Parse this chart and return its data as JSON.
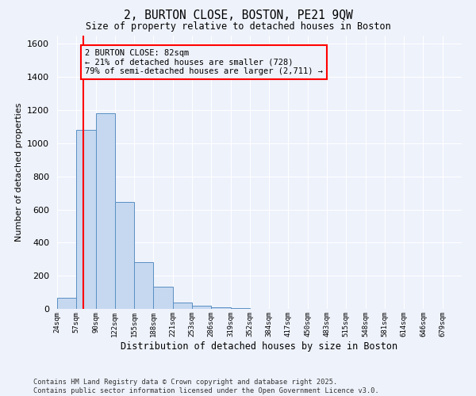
{
  "title": "2, BURTON CLOSE, BOSTON, PE21 9QW",
  "subtitle": "Size of property relative to detached houses in Boston",
  "xlabel": "Distribution of detached houses by size in Boston",
  "ylabel": "Number of detached properties",
  "bin_labels": [
    "24sqm",
    "57sqm",
    "90sqm",
    "122sqm",
    "155sqm",
    "188sqm",
    "221sqm",
    "253sqm",
    "286sqm",
    "319sqm",
    "352sqm",
    "384sqm",
    "417sqm",
    "450sqm",
    "483sqm",
    "515sqm",
    "548sqm",
    "581sqm",
    "614sqm",
    "646sqm",
    "679sqm"
  ],
  "bar_values": [
    65,
    1080,
    1180,
    645,
    280,
    135,
    40,
    20,
    10,
    5,
    2,
    0,
    0,
    0,
    0,
    0,
    0,
    0,
    0,
    0,
    0
  ],
  "bar_color": "#c5d8f0",
  "bar_edge_color": "#5a8fc3",
  "red_line_x": 1.35,
  "annotation_line1": "2 BURTON CLOSE: 82sqm",
  "annotation_line2": "← 21% of detached houses are smaller (728)",
  "annotation_line3": "79% of semi-detached houses are larger (2,711) →",
  "ylim": [
    0,
    1650
  ],
  "yticks": [
    0,
    200,
    400,
    600,
    800,
    1000,
    1200,
    1400,
    1600
  ],
  "background_color": "#eef2fb",
  "grid_color": "#ffffff",
  "footnote1": "Contains HM Land Registry data © Crown copyright and database right 2025.",
  "footnote2": "Contains public sector information licensed under the Open Government Licence v3.0."
}
